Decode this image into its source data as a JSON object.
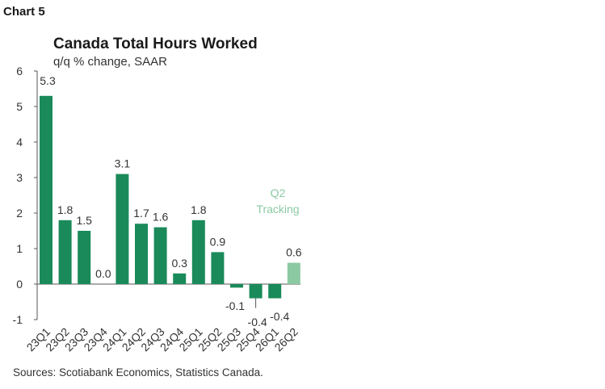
{
  "header": {
    "chart_label": "Chart 5"
  },
  "footer": {
    "source": "Sources: Scotiabank Economics, Statistics Canada."
  },
  "colors": {
    "bar": "#1a8a5a",
    "bar_tracking": "#8bc9a2",
    "axis": "#555555"
  },
  "chart_data": {
    "type": "bar",
    "title": "Canada Total Hours Worked",
    "subtitle": "q/q % change, SAAR",
    "categories": [
      "23Q1",
      "23Q2",
      "23Q3",
      "23Q4",
      "24Q1",
      "24Q2",
      "24Q3",
      "24Q4",
      "25Q1",
      "25Q2",
      "25Q3",
      "25Q4",
      "26Q1",
      "26Q2"
    ],
    "values": [
      5.3,
      1.8,
      1.5,
      0.0,
      3.1,
      1.7,
      1.6,
      0.3,
      1.8,
      0.9,
      -0.1,
      -0.4,
      -0.4,
      0.6
    ],
    "data_labels": [
      "5.3",
      "1.8",
      "1.5",
      "0.0",
      "3.1",
      "1.7",
      "1.6",
      "0.3",
      "1.8",
      "0.9",
      "-0.1",
      "-0.4",
      "-0.4",
      "0.6"
    ],
    "yticks": [
      "6",
      "5",
      "4",
      "3",
      "2",
      "1",
      "0",
      "-1"
    ],
    "ylim": [
      -1,
      6
    ],
    "annotation": {
      "line1": "Q2",
      "line2": "Tracking"
    },
    "highlight_category": "26Q2",
    "grid": false
  }
}
